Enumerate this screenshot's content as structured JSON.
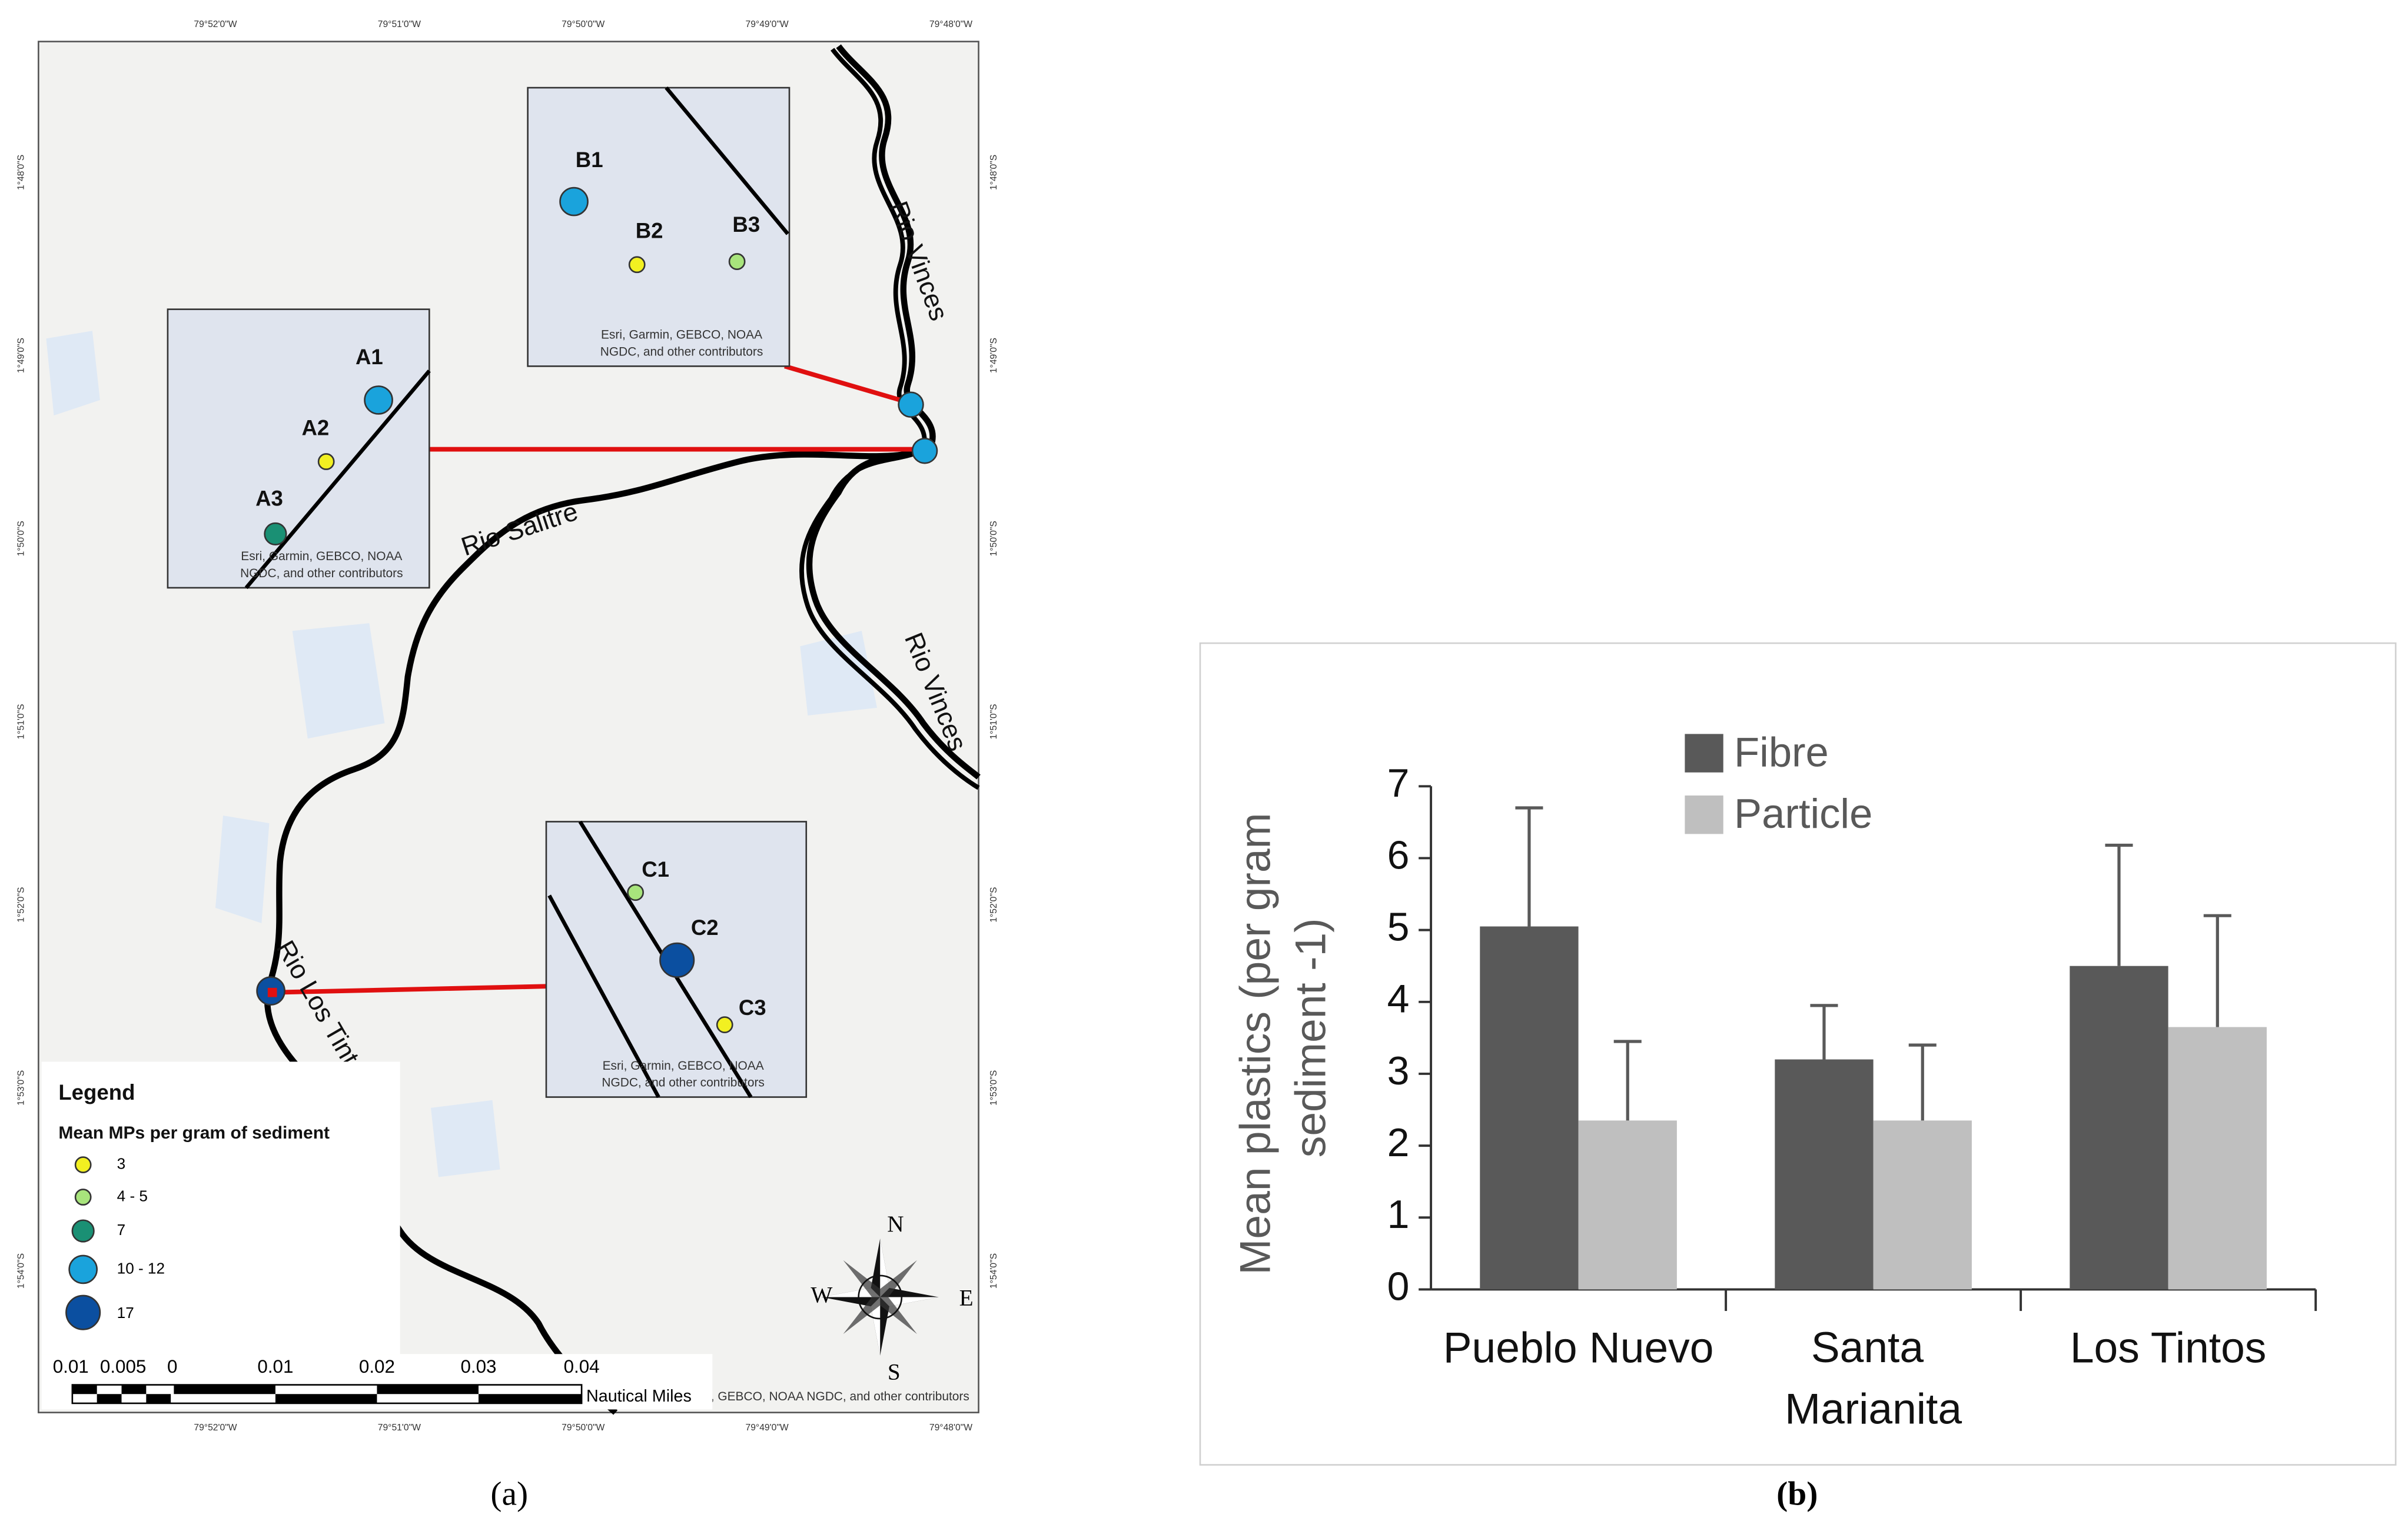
{
  "captions": [
    "(a)",
    "(b)"
  ],
  "map": {
    "coords_top": [
      "79°52'0\"W",
      "79°51'0\"W",
      "79°50'0\"W",
      "79°49'0\"W",
      "79°48'0\"W"
    ],
    "coords_bottom": [
      "79°52'0\"W",
      "79°51'0\"W",
      "79°50'0\"W",
      "79°49'0\"W",
      "79°48'0\"W"
    ],
    "coords_left": [
      "1°48'0\"S",
      "1°49'0\"S",
      "1°50'0\"S",
      "1°51'0\"S",
      "1°52'0\"S",
      "1°53'0\"S",
      "1°54'0\"S"
    ],
    "coords_right": [
      "1°48'0\"S",
      "1°49'0\"S",
      "1°50'0\"S",
      "1°51'0\"S",
      "1°52'0\"S",
      "1°53'0\"S",
      "1°54'0\"S"
    ],
    "rivers": [
      "Rio Vinces",
      "Rio Vinces",
      "Rio Salitre",
      "Rio Los Tintos"
    ],
    "insets": [
      {
        "sites": [
          "B1",
          "B2",
          "B3"
        ],
        "attribution": [
          "Esri, Garmin, GEBCO, NOAA",
          "NGDC, and other contributors"
        ]
      },
      {
        "sites": [
          "A1",
          "A2",
          "A3"
        ],
        "attribution": [
          "Esri, Garmin, GEBCO, NOAA",
          "NGDC, and other contributors"
        ]
      },
      {
        "sites": [
          "C1",
          "C2",
          "C3"
        ],
        "attribution": [
          "Esri, Garmin, GEBCO, NOAA",
          "NGDC, and other contributors"
        ]
      }
    ],
    "legend": {
      "title": "Legend",
      "subtitle": "Mean MPs per gram of sediment",
      "classes": [
        "3",
        "4 - 5",
        "7",
        "10 - 12",
        "17"
      ]
    },
    "scale_bar": {
      "labels": [
        "0.01",
        "0.005",
        "0",
        "0.01",
        "0.02",
        "0.03",
        "0.04"
      ],
      "unit": "Nautical Miles"
    },
    "attribution": "Esri, Garmin, GEBCO, NOAA NGDC, and other contributors",
    "compass": [
      "N",
      "E",
      "S",
      "W"
    ]
  },
  "chart_data": {
    "type": "bar",
    "categories": [
      "Pueblo Nuevo",
      "Santa Marianita",
      " Los Tintos"
    ],
    "y_label": "Mean plastics (per gram sediment -1)",
    "series": [
      {
        "name": "Fibre",
        "color": "#595959",
        "values": [
          5.05,
          3.2,
          4.5
        ],
        "errors": [
          1.65,
          0.75,
          1.68
        ]
      },
      {
        "name": "Particle",
        "color": "#bfbfbf",
        "values": [
          2.35,
          2.35,
          3.65
        ],
        "errors": [
          1.1,
          1.05,
          1.55
        ]
      }
    ],
    "ylim": [
      0,
      7
    ],
    "yticks": [
      0,
      1,
      2,
      3,
      4,
      5,
      6,
      7
    ]
  }
}
